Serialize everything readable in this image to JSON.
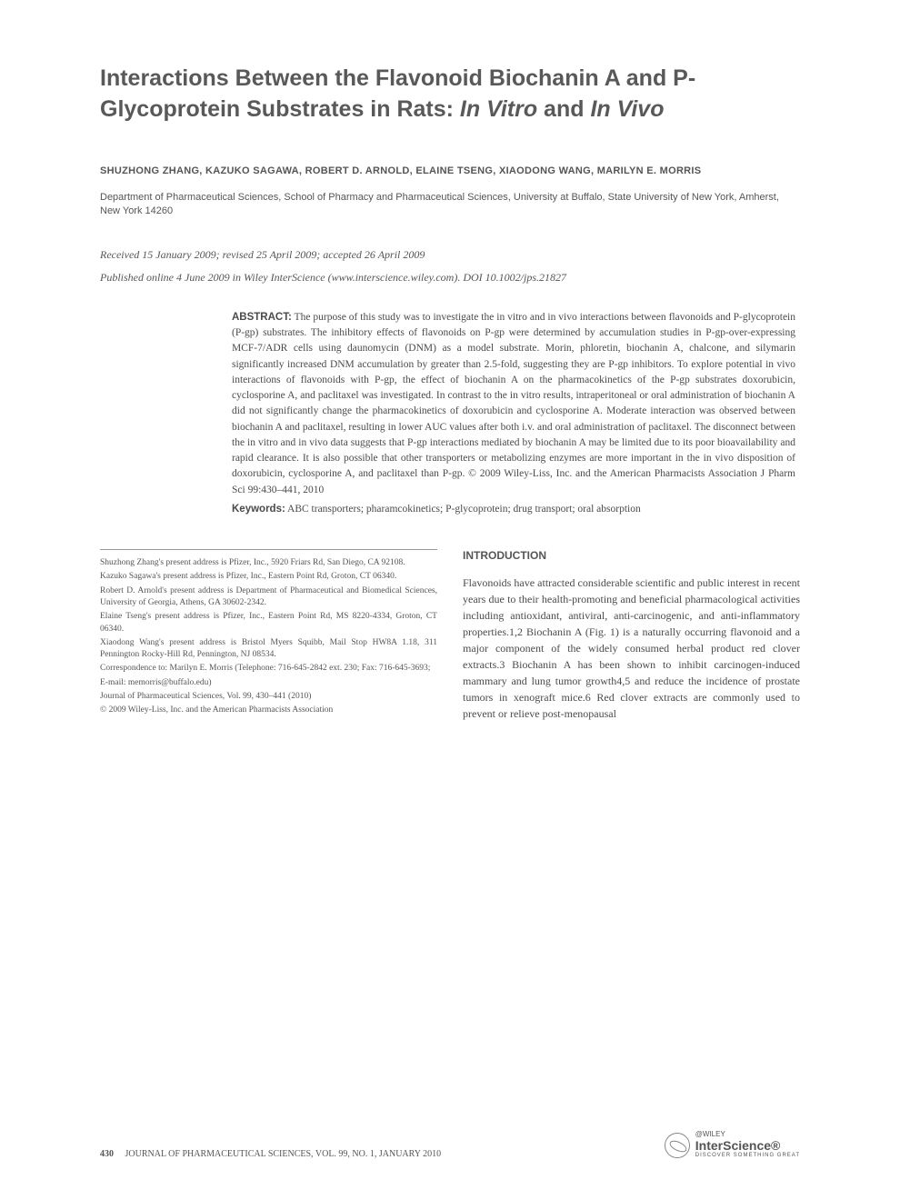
{
  "title": {
    "part1": "Interactions Between the Flavonoid Biochanin A and P-Glycoprotein Substrates in Rats: ",
    "italic1": "In Vitro",
    "mid": " and ",
    "italic2": "In Vivo"
  },
  "authors": "SHUZHONG ZHANG, KAZUKO SAGAWA, ROBERT D. ARNOLD, ELAINE TSENG, XIAODONG WANG, MARILYN E. MORRIS",
  "affiliation": "Department of Pharmaceutical Sciences, School of Pharmacy and Pharmaceutical Sciences, University at Buffalo, State University of New York, Amherst, New York 14260",
  "dates": "Received 15 January 2009; revised 25 April 2009; accepted 26 April 2009",
  "published": "Published online 4 June 2009 in Wiley InterScience (www.interscience.wiley.com). DOI 10.1002/jps.21827",
  "abstract": {
    "label": "ABSTRACT:",
    "text": " The purpose of this study was to investigate the in vitro and in vivo interactions between flavonoids and P-glycoprotein (P-gp) substrates. The inhibitory effects of flavonoids on P-gp were determined by accumulation studies in P-gp-over-expressing MCF-7/ADR cells using daunomycin (DNM) as a model substrate. Morin, phloretin, biochanin A, chalcone, and silymarin significantly increased DNM accumulation by greater than 2.5-fold, suggesting they are P-gp inhibitors. To explore potential in vivo interactions of flavonoids with P-gp, the effect of biochanin A on the pharmacokinetics of the P-gp substrates doxorubicin, cyclosporine A, and paclitaxel was investigated. In contrast to the in vitro results, intraperitoneal or oral administration of biochanin A did not significantly change the pharmacokinetics of doxorubicin and cyclosporine A. Moderate interaction was observed between biochanin A and paclitaxel, resulting in lower AUC values after both i.v. and oral administration of paclitaxel. The disconnect between the in vitro and in vivo data suggests that P-gp interactions mediated by biochanin A may be limited due to its poor bioavailability and rapid clearance. It is also possible that other transporters or metabolizing enzymes are more important in the in vivo disposition of doxorubicin, cyclosporine A, and paclitaxel than P-gp. © 2009 Wiley-Liss, Inc. and the American Pharmacists Association J Pharm Sci 99:430–441, 2010"
  },
  "keywords": {
    "label": "Keywords:",
    "text": " ABC transporters; pharamcokinetics; P-glycoprotein; drug transport; oral absorption"
  },
  "footnotes": [
    "Shuzhong Zhang's present address is Pfizer, Inc., 5920 Friars Rd, San Diego, CA 92108.",
    "Kazuko Sagawa's present address is Pfizer, Inc., Eastern Point Rd, Groton, CT 06340.",
    "Robert D. Arnold's present address is Department of Pharmaceutical and Biomedical Sciences, University of Georgia, Athens, GA 30602-2342.",
    "Elaine Tseng's present address is Pfizer, Inc., Eastern Point Rd, MS 8220-4334, Groton, CT 06340.",
    "Xiaodong Wang's present address is Bristol Myers Squibb, Mail Stop HW8A 1.18, 311 Pennington Rocky-Hill Rd, Pennington, NJ 08534.",
    "Correspondence to: Marilyn E. Morris (Telephone: 716-645-2842 ext. 230; Fax: 716-645-3693;",
    "E-mail: memorris@buffalo.edu)",
    "Journal of Pharmaceutical Sciences, Vol. 99, 430–441 (2010)",
    "© 2009 Wiley-Liss, Inc. and the American Pharmacists Association"
  ],
  "introduction": {
    "heading": "INTRODUCTION",
    "text": "Flavonoids have attracted considerable scientific and public interest in recent years due to their health-promoting and beneficial pharmacological activities including antioxidant, antiviral, anti-carcinogenic, and anti-inflammatory properties.1,2 Biochanin A (Fig. 1) is a naturally occurring flavonoid and a major component of the widely consumed herbal product red clover extracts.3 Biochanin A has been shown to inhibit carcinogen-induced mammary and lung tumor growth4,5 and reduce the incidence of prostate tumors in xenograft mice.6 Red clover extracts are commonly used to prevent or relieve post-menopausal"
  },
  "footer": {
    "page": "430",
    "journal": "JOURNAL OF PHARMACEUTICAL SCIENCES, VOL. 99, NO. 1, JANUARY 2010",
    "logo_wiley": "@WILEY",
    "logo_main": "InterScience®",
    "logo_sub": "DISCOVER SOMETHING GREAT"
  },
  "colors": {
    "background": "#ffffff",
    "text": "#4a4a4a",
    "heading": "#595959"
  }
}
